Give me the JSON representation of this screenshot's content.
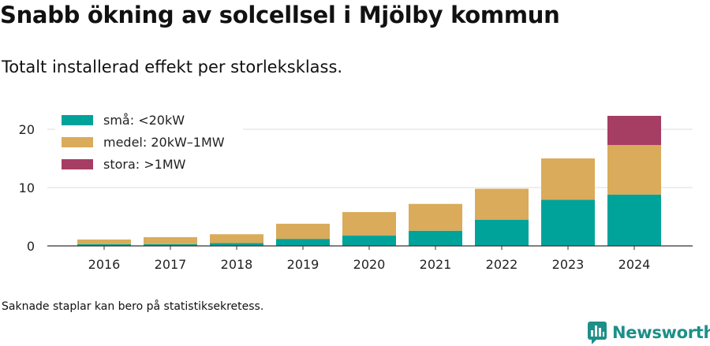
{
  "title": "Snabb ökning av solcellsel i Mjölby kommun",
  "subtitle": "Totalt installerad effekt per storleksklass.",
  "footnote": "Saknade staplar kan bero på statistiksekretess.",
  "brand": {
    "name": "Newsworthy",
    "icon": "bar-chart-speech-bubble-icon",
    "color": "#1d8f89"
  },
  "chart_data": {
    "type": "bar",
    "stacked": true,
    "categories": [
      "2016",
      "2017",
      "2018",
      "2019",
      "2020",
      "2021",
      "2022",
      "2023",
      "2024"
    ],
    "series": [
      {
        "name": "små: <20kW",
        "color": "#00a39a",
        "values": [
          0.3,
          0.3,
          0.5,
          1.2,
          1.8,
          2.6,
          4.5,
          7.9,
          8.8
        ]
      },
      {
        "name": "medel: 20kW–1MW",
        "color": "#d9ab5a",
        "values": [
          0.8,
          1.2,
          1.5,
          2.6,
          4.0,
          4.6,
          5.3,
          7.1,
          8.5
        ]
      },
      {
        "name": "stora: >1MW",
        "color": "#a63d63",
        "values": [
          0,
          0,
          0,
          0,
          0,
          0,
          0,
          0,
          5.0
        ]
      }
    ],
    "yticks": [
      0,
      10,
      20
    ],
    "ylim": [
      0,
      22.5
    ],
    "grid": true,
    "legend": "top-left",
    "xlabel": "",
    "ylabel": ""
  }
}
